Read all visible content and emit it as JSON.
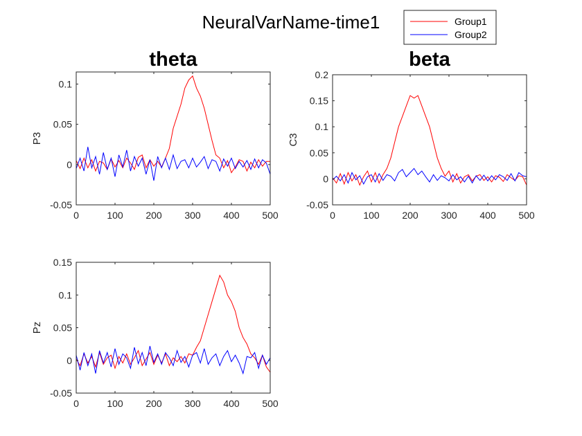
{
  "figure": {
    "title": "NeuralVarName-time1",
    "legend": [
      {
        "name": "Group1",
        "color": "#ff0000"
      },
      {
        "name": "Group2",
        "color": "#0000ff"
      }
    ]
  },
  "chart_data": [
    {
      "type": "line",
      "title": "theta",
      "xlabel": "",
      "ylabel": "P3",
      "xlim": [
        0,
        500
      ],
      "ylim": [
        -0.05,
        0.115
      ],
      "xticks": [
        0,
        100,
        200,
        300,
        400,
        500
      ],
      "yticks": [
        -0.05,
        0,
        0.05,
        0.1
      ],
      "ytick_labels": [
        "-0.05",
        "0",
        "0.05",
        "0.1"
      ],
      "series": [
        {
          "name": "Group1",
          "color": "#ff0000",
          "x": [
            0,
            10,
            20,
            30,
            40,
            50,
            60,
            70,
            80,
            90,
            100,
            110,
            120,
            130,
            140,
            150,
            160,
            170,
            180,
            190,
            200,
            210,
            220,
            230,
            240,
            250,
            260,
            270,
            280,
            290,
            300,
            310,
            320,
            330,
            340,
            350,
            360,
            370,
            380,
            390,
            400,
            410,
            420,
            430,
            440,
            450,
            460,
            470,
            480,
            490,
            500
          ],
          "y": [
            0.005,
            -0.005,
            0.008,
            -0.004,
            0.006,
            -0.008,
            0.004,
            0.002,
            -0.006,
            0.007,
            -0.003,
            0.005,
            -0.004,
            0.008,
            0.002,
            -0.006,
            0.009,
            0.012,
            -0.004,
            0.006,
            -0.002,
            0.004,
            -0.003,
            0.008,
            0.02,
            0.045,
            0.06,
            0.075,
            0.095,
            0.105,
            0.11,
            0.095,
            0.085,
            0.07,
            0.05,
            0.03,
            0.012,
            0.008,
            -0.004,
            0.005,
            -0.01,
            -0.003,
            0.006,
            0.004,
            -0.008,
            0.003,
            -0.004,
            0.006,
            -0.002,
            0.004,
            0.004
          ]
        },
        {
          "name": "Group2",
          "color": "#0000ff",
          "x": [
            0,
            10,
            20,
            30,
            40,
            50,
            60,
            70,
            80,
            90,
            100,
            110,
            120,
            130,
            140,
            150,
            160,
            170,
            180,
            190,
            200,
            210,
            220,
            230,
            240,
            250,
            260,
            270,
            280,
            290,
            300,
            310,
            320,
            330,
            340,
            350,
            360,
            370,
            380,
            390,
            400,
            410,
            420,
            430,
            440,
            450,
            460,
            470,
            480,
            490,
            500
          ],
          "y": [
            -0.005,
            0.008,
            -0.008,
            0.022,
            -0.004,
            0.01,
            -0.012,
            0.015,
            -0.006,
            0.008,
            -0.015,
            0.012,
            -0.003,
            0.018,
            -0.008,
            0.01,
            -0.002,
            0.008,
            -0.012,
            0.006,
            -0.02,
            0.01,
            -0.004,
            0.008,
            -0.006,
            0.012,
            -0.005,
            0.004,
            0.006,
            -0.004,
            0.008,
            -0.003,
            0.003,
            0.01,
            -0.005,
            0.006,
            0.004,
            -0.008,
            0.007,
            -0.002,
            0.008,
            -0.005,
            0.004,
            -0.003,
            0.005,
            -0.006,
            0.007,
            -0.004,
            0.006,
            0.002,
            -0.012
          ]
        }
      ]
    },
    {
      "type": "line",
      "title": "beta",
      "xlabel": "",
      "ylabel": "C3",
      "xlim": [
        0,
        500
      ],
      "ylim": [
        -0.05,
        0.2
      ],
      "xticks": [
        0,
        100,
        200,
        300,
        400,
        500
      ],
      "yticks": [
        -0.05,
        0,
        0.05,
        0.1,
        0.15,
        0.2
      ],
      "ytick_labels": [
        "-0.05",
        "0",
        "0.05",
        "0.1",
        "0.15",
        "0.2"
      ],
      "series": [
        {
          "name": "Group1",
          "color": "#ff0000",
          "x": [
            0,
            10,
            20,
            30,
            40,
            50,
            60,
            70,
            80,
            90,
            100,
            110,
            120,
            130,
            140,
            150,
            160,
            170,
            180,
            190,
            200,
            210,
            220,
            230,
            240,
            250,
            260,
            270,
            280,
            290,
            300,
            310,
            320,
            330,
            340,
            350,
            360,
            370,
            380,
            390,
            400,
            410,
            420,
            430,
            440,
            450,
            460,
            470,
            480,
            490,
            500
          ],
          "y": [
            0.002,
            -0.008,
            0.01,
            -0.01,
            0.012,
            -0.004,
            0.008,
            -0.012,
            0.004,
            0.015,
            -0.006,
            0.012,
            -0.008,
            0.008,
            0.02,
            0.04,
            0.07,
            0.1,
            0.12,
            0.14,
            0.16,
            0.155,
            0.16,
            0.14,
            0.12,
            0.1,
            0.07,
            0.04,
            0.02,
            0.005,
            0.015,
            -0.006,
            0.01,
            -0.008,
            0.004,
            0.008,
            -0.004,
            0.005,
            0.008,
            -0.003,
            0.004,
            -0.006,
            0.006,
            0.003,
            -0.005,
            0.008,
            0.002,
            -0.003,
            0.006,
            0.004,
            -0.012
          ]
        },
        {
          "name": "Group2",
          "color": "#0000ff",
          "x": [
            0,
            10,
            20,
            30,
            40,
            50,
            60,
            70,
            80,
            90,
            100,
            110,
            120,
            130,
            140,
            150,
            160,
            170,
            180,
            190,
            200,
            210,
            220,
            230,
            240,
            250,
            260,
            270,
            280,
            290,
            300,
            310,
            320,
            330,
            340,
            350,
            360,
            370,
            380,
            390,
            400,
            410,
            420,
            430,
            440,
            450,
            460,
            470,
            480,
            490,
            500
          ],
          "y": [
            -0.002,
            0.005,
            -0.004,
            0.008,
            -0.008,
            0.012,
            -0.002,
            0.006,
            -0.01,
            0.004,
            0.008,
            -0.006,
            0.01,
            -0.003,
            0.008,
            0.005,
            -0.004,
            0.012,
            0.018,
            0.004,
            0.012,
            0.02,
            0.008,
            0.015,
            0.004,
            -0.006,
            0.008,
            -0.003,
            0.006,
            0.002,
            -0.004,
            0.008,
            -0.002,
            0.004,
            -0.006,
            0.005,
            -0.008,
            0.006,
            -0.003,
            0.007,
            -0.004,
            0.006,
            -0.002,
            0.008,
            0.004,
            -0.003,
            0.01,
            -0.004,
            0.012,
            0.006,
            0.004
          ]
        }
      ]
    },
    {
      "type": "line",
      "title": "",
      "xlabel": "",
      "ylabel": "Pz",
      "xlim": [
        0,
        500
      ],
      "ylim": [
        -0.05,
        0.15
      ],
      "xticks": [
        0,
        100,
        200,
        300,
        400,
        500
      ],
      "yticks": [
        -0.05,
        0,
        0.05,
        0.1,
        0.15
      ],
      "ytick_labels": [
        "-0.05",
        "0",
        "0.05",
        "0.1",
        "0.15"
      ],
      "series": [
        {
          "name": "Group1",
          "color": "#ff0000",
          "x": [
            0,
            10,
            20,
            30,
            40,
            50,
            60,
            70,
            80,
            90,
            100,
            110,
            120,
            130,
            140,
            150,
            160,
            170,
            180,
            190,
            200,
            210,
            220,
            230,
            240,
            250,
            260,
            270,
            280,
            290,
            300,
            310,
            320,
            330,
            340,
            350,
            360,
            370,
            380,
            390,
            400,
            410,
            420,
            430,
            440,
            450,
            460,
            470,
            480,
            490,
            500
          ],
          "y": [
            0.002,
            -0.008,
            0.01,
            -0.004,
            0.006,
            -0.01,
            0.012,
            -0.006,
            0.004,
            0.008,
            -0.012,
            0.006,
            -0.004,
            0.01,
            -0.006,
            0.004,
            0.015,
            -0.008,
            0.002,
            0.012,
            -0.006,
            0.008,
            -0.004,
            0.01,
            -0.008,
            0.004,
            -0.002,
            0.006,
            -0.004,
            0.01,
            0.008,
            0.02,
            0.03,
            0.05,
            0.07,
            0.09,
            0.11,
            0.13,
            0.12,
            0.1,
            0.09,
            0.075,
            0.05,
            0.035,
            0.025,
            0.01,
            0.004,
            -0.006,
            0.008,
            -0.01,
            -0.018
          ]
        },
        {
          "name": "Group2",
          "color": "#0000ff",
          "x": [
            0,
            10,
            20,
            30,
            40,
            50,
            60,
            70,
            80,
            90,
            100,
            110,
            120,
            130,
            140,
            150,
            160,
            170,
            180,
            190,
            200,
            210,
            220,
            230,
            240,
            250,
            260,
            270,
            280,
            290,
            300,
            310,
            320,
            330,
            340,
            350,
            360,
            370,
            380,
            390,
            400,
            410,
            420,
            430,
            440,
            450,
            460,
            470,
            480,
            490,
            500
          ],
          "y": [
            0.008,
            -0.015,
            0.012,
            -0.008,
            0.01,
            -0.02,
            0.015,
            -0.004,
            0.012,
            -0.01,
            0.018,
            -0.006,
            0.01,
            0.004,
            -0.012,
            0.02,
            -0.005,
            0.012,
            -0.008,
            0.022,
            -0.003,
            0.01,
            -0.006,
            0.012,
            0.004,
            -0.008,
            0.015,
            -0.003,
            0.006,
            -0.01,
            0.008,
            0.012,
            -0.004,
            0.018,
            -0.006,
            0.004,
            0.01,
            -0.008,
            0.006,
            0.015,
            -0.002,
            0.008,
            -0.004,
            -0.02,
            0.006,
            0.004,
            0.012,
            -0.012,
            0.008,
            -0.006,
            0.004
          ]
        }
      ]
    }
  ]
}
